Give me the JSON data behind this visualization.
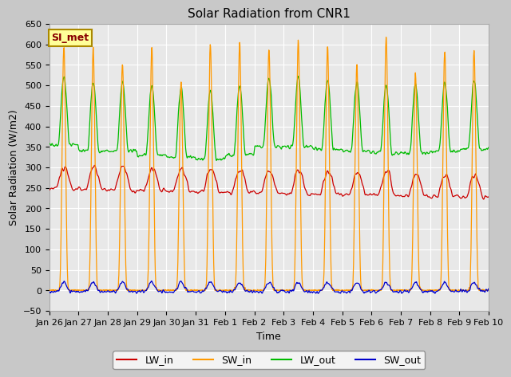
{
  "title": "Solar Radiation from CNR1",
  "xlabel": "Time",
  "ylabel": "Solar Radiation (W/m2)",
  "ylim": [
    -50,
    650
  ],
  "yticks": [
    -50,
    0,
    50,
    100,
    150,
    200,
    250,
    300,
    350,
    400,
    450,
    500,
    550,
    600,
    650
  ],
  "xtick_labels": [
    "Jan 26",
    "Jan 27",
    "Jan 28",
    "Jan 29",
    "Jan 30",
    "Jan 31",
    "Feb 1",
    "Feb 2",
    "Feb 3",
    "Feb 4",
    "Feb 5",
    "Feb 6",
    "Feb 7",
    "Feb 8",
    "Feb 9",
    "Feb 10"
  ],
  "line_colors": {
    "LW_in": "#cc0000",
    "SW_in": "#ff9900",
    "LW_out": "#00bb00",
    "SW_out": "#0000cc"
  },
  "annotation_text": "SI_met",
  "annotation_color": "#880000",
  "annotation_bg": "#ffff99",
  "annotation_border": "#aa8800",
  "fig_facecolor": "#c8c8c8",
  "ax_facecolor": "#e8e8e8",
  "grid_color": "#ffffff",
  "n_days": 15,
  "pts_per_day": 144,
  "title_fontsize": 11,
  "label_fontsize": 9,
  "tick_fontsize": 8
}
